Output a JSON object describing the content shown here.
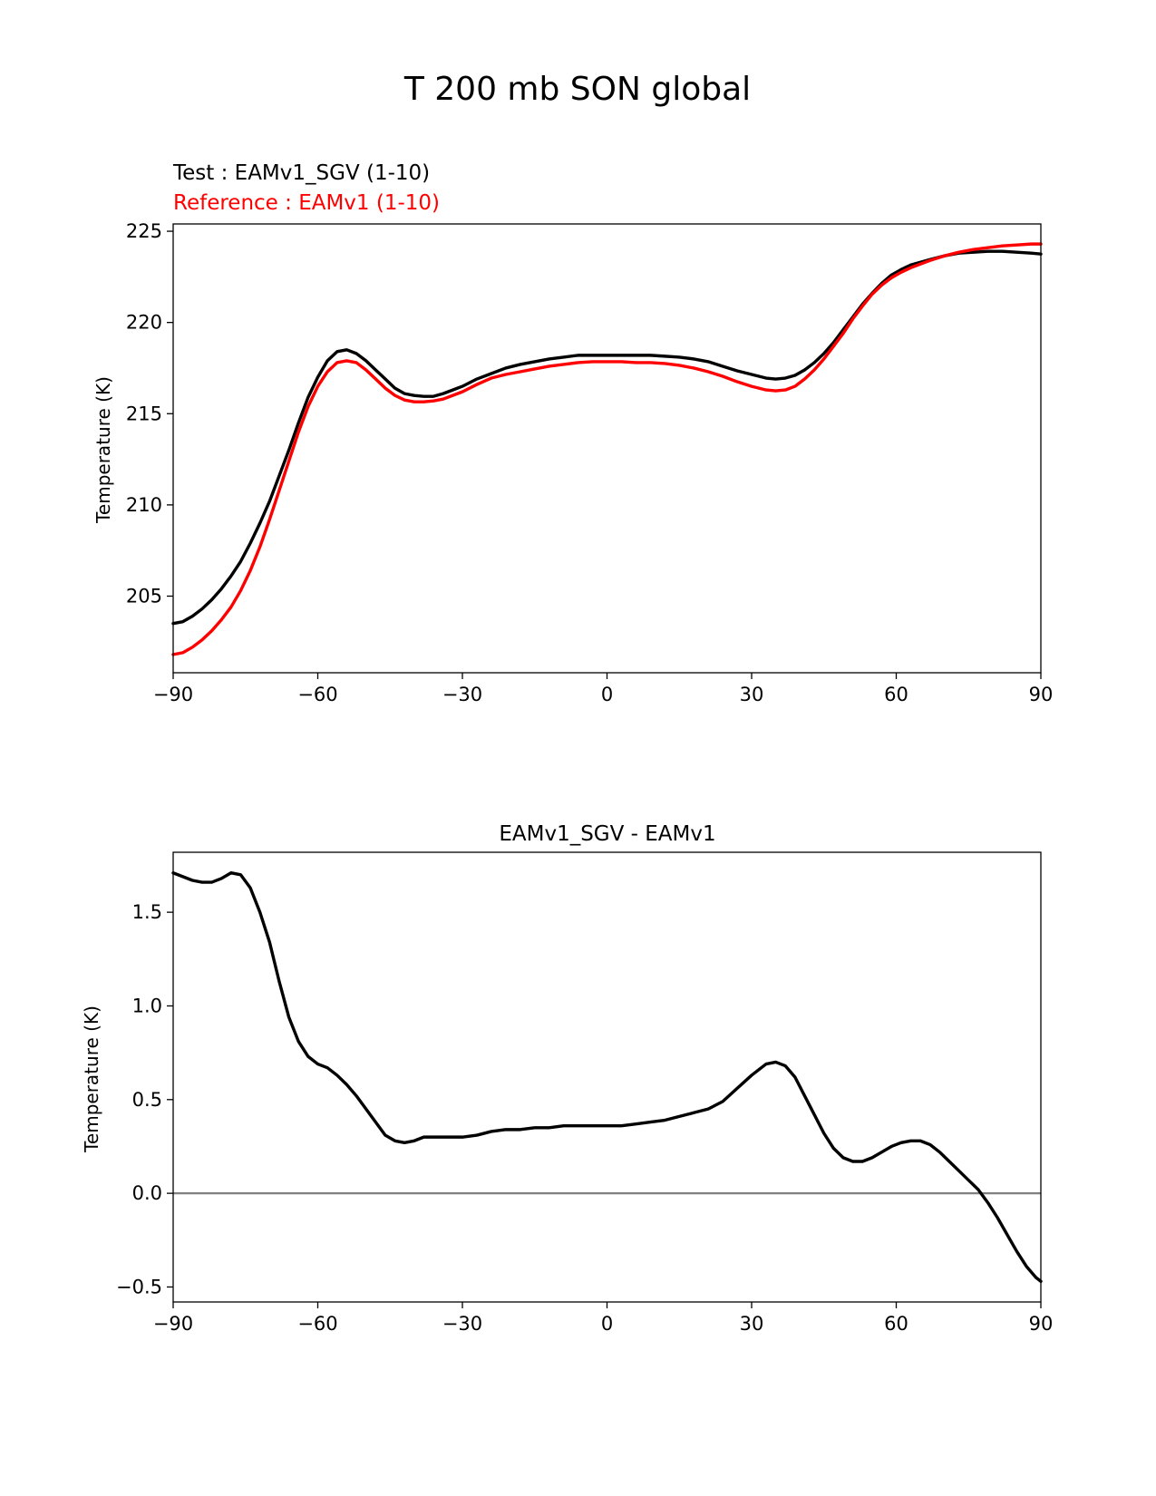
{
  "figure_title": "T 200 mb SON global",
  "chart_data": [
    {
      "type": "line",
      "title": "",
      "legend": [
        {
          "label": "Test : EAMv1_SGV (1-10)",
          "color": "#000000"
        },
        {
          "label": "Reference : EAMv1 (1-10)",
          "color": "#ff0000"
        }
      ],
      "xlabel": "",
      "ylabel": "Temperature (K)",
      "xlim": [
        -90,
        90
      ],
      "ylim": [
        200.8,
        225.4
      ],
      "xticks": [
        -90,
        -60,
        -30,
        0,
        30,
        60,
        90
      ],
      "xtick_labels": [
        "−90",
        "−60",
        "−30",
        "0",
        "30",
        "60",
        "90"
      ],
      "yticks": [
        205,
        210,
        215,
        220,
        225
      ],
      "ytick_labels": [
        "205",
        "210",
        "215",
        "220",
        "225"
      ],
      "grid": false,
      "series": [
        {
          "name": "Test : EAMv1_SGV (1-10)",
          "color": "#000000",
          "x": [
            -90,
            -88,
            -86,
            -84,
            -82,
            -80,
            -78,
            -76,
            -74,
            -72,
            -70,
            -68,
            -66,
            -64,
            -62,
            -60,
            -58,
            -56,
            -54,
            -52,
            -50,
            -48,
            -46,
            -44,
            -42,
            -40,
            -38,
            -36,
            -34,
            -32,
            -30,
            -27,
            -24,
            -21,
            -18,
            -15,
            -12,
            -9,
            -6,
            -3,
            0,
            3,
            6,
            9,
            12,
            15,
            18,
            21,
            24,
            27,
            30,
            33,
            35,
            37,
            39,
            41,
            43,
            45,
            47,
            49,
            51,
            53,
            55,
            57,
            59,
            61,
            63,
            65,
            67,
            70,
            73,
            76,
            79,
            82,
            85,
            88,
            90
          ],
          "values": [
            203.5,
            203.6,
            203.9,
            204.3,
            204.8,
            205.4,
            206.1,
            206.9,
            207.9,
            209.0,
            210.2,
            211.6,
            213.0,
            214.5,
            215.9,
            217.0,
            217.9,
            218.4,
            218.5,
            218.3,
            217.9,
            217.4,
            216.9,
            216.4,
            216.1,
            216.0,
            215.95,
            215.95,
            216.1,
            216.3,
            216.5,
            216.9,
            217.2,
            217.5,
            217.7,
            217.85,
            218.0,
            218.1,
            218.2,
            218.2,
            218.2,
            218.2,
            218.2,
            218.2,
            218.15,
            218.1,
            218.0,
            217.85,
            217.6,
            217.35,
            217.15,
            216.95,
            216.9,
            216.95,
            217.1,
            217.4,
            217.8,
            218.3,
            218.9,
            219.6,
            220.3,
            221.0,
            221.6,
            222.15,
            222.6,
            222.9,
            223.15,
            223.3,
            223.45,
            223.65,
            223.8,
            223.85,
            223.9,
            223.9,
            223.85,
            223.8,
            223.75
          ]
        },
        {
          "name": "Reference : EAMv1 (1-10)",
          "color": "#ff0000",
          "x": [
            -90,
            -88,
            -86,
            -84,
            -82,
            -80,
            -78,
            -76,
            -74,
            -72,
            -70,
            -68,
            -66,
            -64,
            -62,
            -60,
            -58,
            -56,
            -54,
            -52,
            -50,
            -48,
            -46,
            -44,
            -42,
            -40,
            -38,
            -36,
            -34,
            -32,
            -30,
            -27,
            -24,
            -21,
            -18,
            -15,
            -12,
            -9,
            -6,
            -3,
            0,
            3,
            6,
            9,
            12,
            15,
            18,
            21,
            24,
            27,
            30,
            33,
            35,
            37,
            39,
            41,
            43,
            45,
            47,
            49,
            51,
            53,
            55,
            57,
            59,
            61,
            63,
            65,
            67,
            70,
            73,
            76,
            79,
            82,
            85,
            88,
            90
          ],
          "values": [
            201.8,
            201.9,
            202.2,
            202.6,
            203.1,
            203.7,
            204.4,
            205.3,
            206.4,
            207.7,
            209.2,
            210.8,
            212.4,
            214.0,
            215.4,
            216.5,
            217.3,
            217.8,
            217.9,
            217.8,
            217.4,
            216.9,
            216.4,
            216.0,
            215.75,
            215.65,
            215.65,
            215.7,
            215.8,
            216.0,
            216.2,
            216.6,
            216.95,
            217.15,
            217.3,
            217.45,
            217.6,
            217.7,
            217.8,
            217.85,
            217.85,
            217.85,
            217.8,
            217.8,
            217.75,
            217.65,
            217.5,
            217.3,
            217.05,
            216.75,
            216.5,
            216.3,
            216.25,
            216.3,
            216.5,
            216.9,
            217.4,
            218.0,
            218.7,
            219.4,
            220.2,
            220.9,
            221.55,
            222.05,
            222.45,
            222.75,
            223.0,
            223.2,
            223.4,
            223.65,
            223.85,
            224.0,
            224.1,
            224.2,
            224.25,
            224.3,
            224.3
          ]
        }
      ]
    },
    {
      "type": "line",
      "title": "EAMv1_SGV - EAMv1",
      "xlabel": "",
      "ylabel": "Temperature (K)",
      "xlim": [
        -90,
        90
      ],
      "ylim": [
        -0.58,
        1.82
      ],
      "xticks": [
        -90,
        -60,
        -30,
        0,
        30,
        60,
        90
      ],
      "xtick_labels": [
        "−90",
        "−60",
        "−30",
        "0",
        "30",
        "60",
        "90"
      ],
      "yticks": [
        -0.5,
        0.0,
        0.5,
        1.0,
        1.5
      ],
      "ytick_labels": [
        "−0.5",
        "0.0",
        "0.5",
        "1.0",
        "1.5"
      ],
      "grid": false,
      "zero_line": {
        "y": 0.0,
        "color": "#808080"
      },
      "series": [
        {
          "name": "EAMv1_SGV - EAMv1",
          "color": "#000000",
          "x": [
            -90,
            -88,
            -86,
            -84,
            -82,
            -80,
            -78,
            -76,
            -74,
            -72,
            -70,
            -68,
            -66,
            -64,
            -62,
            -60,
            -58,
            -56,
            -54,
            -52,
            -50,
            -48,
            -46,
            -44,
            -42,
            -40,
            -38,
            -36,
            -34,
            -32,
            -30,
            -27,
            -24,
            -21,
            -18,
            -15,
            -12,
            -9,
            -6,
            -3,
            0,
            3,
            6,
            9,
            12,
            15,
            18,
            21,
            24,
            27,
            30,
            33,
            35,
            37,
            39,
            41,
            43,
            45,
            47,
            49,
            51,
            53,
            55,
            57,
            59,
            61,
            63,
            65,
            67,
            69,
            71,
            73,
            75,
            77,
            79,
            81,
            83,
            85,
            87,
            89,
            90
          ],
          "values": [
            1.71,
            1.69,
            1.67,
            1.66,
            1.66,
            1.68,
            1.71,
            1.7,
            1.63,
            1.5,
            1.34,
            1.13,
            0.94,
            0.81,
            0.73,
            0.69,
            0.67,
            0.63,
            0.58,
            0.52,
            0.45,
            0.38,
            0.31,
            0.28,
            0.27,
            0.28,
            0.3,
            0.3,
            0.3,
            0.3,
            0.3,
            0.31,
            0.33,
            0.34,
            0.34,
            0.35,
            0.35,
            0.36,
            0.36,
            0.36,
            0.36,
            0.36,
            0.37,
            0.38,
            0.39,
            0.41,
            0.43,
            0.45,
            0.49,
            0.56,
            0.63,
            0.69,
            0.7,
            0.68,
            0.62,
            0.52,
            0.42,
            0.32,
            0.24,
            0.19,
            0.17,
            0.17,
            0.19,
            0.22,
            0.25,
            0.27,
            0.28,
            0.28,
            0.26,
            0.22,
            0.17,
            0.12,
            0.07,
            0.02,
            -0.05,
            -0.13,
            -0.22,
            -0.31,
            -0.39,
            -0.45,
            -0.47
          ]
        }
      ]
    }
  ]
}
